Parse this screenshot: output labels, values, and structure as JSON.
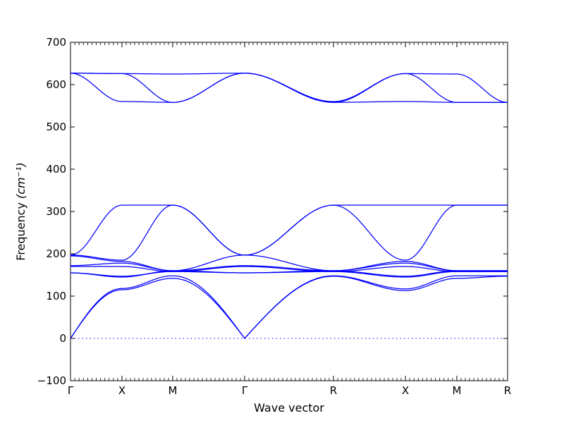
{
  "chart_data": {
    "type": "line",
    "xlabel": "Wave vector",
    "ylabel": "Frequency",
    "ylabel_unit": "(cm⁻¹)",
    "ylim": [
      -100,
      700
    ],
    "yticks": [
      -100,
      0,
      100,
      200,
      300,
      400,
      500,
      600,
      700
    ],
    "xlim": [
      0,
      6.165
    ],
    "high_symmetry_points": [
      {
        "label": "Γ",
        "x": 0
      },
      {
        "label": "X",
        "x": 0.5
      },
      {
        "label": "M",
        "x": 1.0
      },
      {
        "label": "Γ",
        "x": 1.707
      },
      {
        "label": "R",
        "x": 2.573
      },
      {
        "label": "X",
        "x": 3.281
      },
      {
        "label": "M",
        "x": 3.781
      },
      {
        "label": "R",
        "x": 4.281
      }
    ],
    "reference_line": {
      "y": 0,
      "style": "dotted"
    },
    "series_color": "#0000ff",
    "series": [
      {
        "x": [
          0,
          0.5,
          1.0,
          1.707,
          2.573,
          3.281,
          3.781,
          4.281
        ],
        "values": [
          0,
          115,
          142,
          0,
          147,
          113,
          142,
          147
        ]
      },
      {
        "x": [
          0,
          0.5,
          1.0,
          1.707,
          2.573,
          3.281,
          3.781,
          4.281
        ],
        "values": [
          0,
          118,
          148,
          0,
          148,
          117,
          148,
          148
        ]
      },
      {
        "x": [
          0,
          0.5,
          1.0,
          1.707,
          2.573,
          3.281,
          3.781,
          4.281
        ],
        "values": [
          155,
          147,
          158,
          155,
          158,
          145,
          158,
          158
        ]
      },
      {
        "x": [
          0,
          0.5,
          1.0,
          1.707,
          2.573,
          3.281,
          3.781,
          4.281
        ],
        "values": [
          155,
          145,
          160,
          155,
          160,
          147,
          160,
          160
        ]
      },
      {
        "x": [
          0,
          0.5,
          1.0,
          1.707,
          2.573,
          3.281,
          3.781,
          4.281
        ],
        "values": [
          170,
          170,
          158,
          170,
          158,
          170,
          158,
          158
        ]
      },
      {
        "x": [
          0,
          0.5,
          1.0,
          1.707,
          2.573,
          3.281,
          3.781,
          4.281
        ],
        "values": [
          172,
          178,
          160,
          172,
          160,
          178,
          160,
          160
        ]
      },
      {
        "x": [
          0,
          0.5,
          1.0,
          1.707,
          2.573,
          3.281,
          3.781,
          4.281
        ],
        "values": [
          195,
          182,
          160,
          197,
          160,
          182,
          160,
          160
        ]
      },
      {
        "x": [
          0,
          0.5,
          1.0,
          1.707,
          2.573,
          3.281,
          3.781,
          4.281
        ],
        "values": [
          197,
          315,
          315,
          197,
          315,
          315,
          315,
          315
        ]
      },
      {
        "x": [
          0,
          0.5,
          1.0,
          1.707,
          2.573,
          3.281,
          3.781,
          4.281
        ],
        "values": [
          197,
          185,
          315,
          197,
          315,
          185,
          315,
          315
        ]
      },
      {
        "x": [
          0,
          0.5,
          1.0,
          1.707,
          2.573,
          3.281,
          3.781,
          4.281
        ],
        "values": [
          627,
          560,
          558,
          627,
          558,
          626,
          558,
          558
        ]
      },
      {
        "x": [
          0,
          0.5,
          1.0,
          1.707,
          2.573,
          3.281,
          3.781,
          4.281
        ],
        "values": [
          627,
          626,
          558,
          627,
          558,
          560,
          558,
          558
        ]
      },
      {
        "x": [
          0,
          0.5,
          1.0,
          1.707,
          2.573,
          3.281,
          3.781,
          4.281
        ],
        "values": [
          627,
          626,
          625,
          627,
          560,
          626,
          625,
          558
        ]
      }
    ]
  }
}
